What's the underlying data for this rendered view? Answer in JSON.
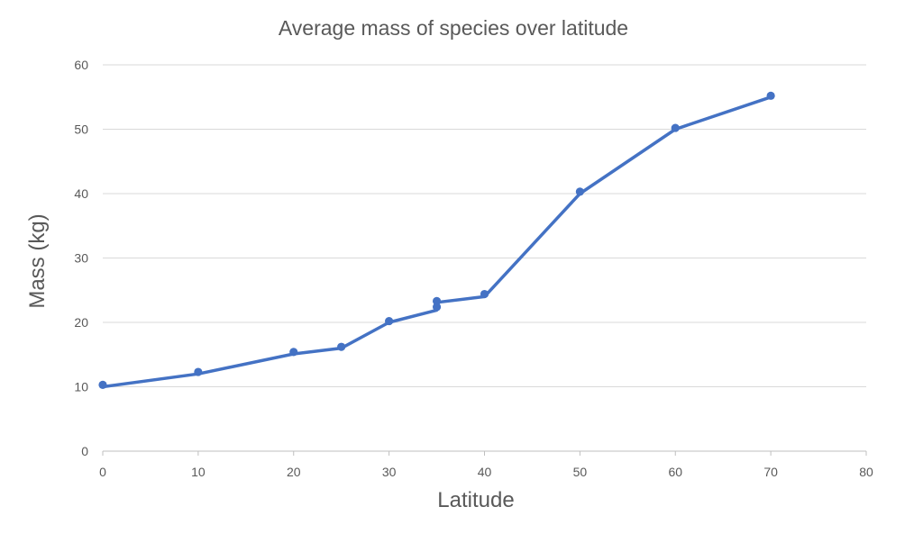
{
  "chart_data": {
    "type": "scatter",
    "title": "Average mass of species over latitude",
    "xlabel": "Latitude",
    "ylabel": "Mass (kg)",
    "xlim": [
      0,
      80
    ],
    "ylim": [
      0,
      60
    ],
    "x_ticks": [
      0,
      10,
      20,
      30,
      40,
      50,
      60,
      70,
      80
    ],
    "y_ticks": [
      0,
      10,
      20,
      30,
      40,
      50,
      60
    ],
    "grid": "horizontal",
    "legend": "none",
    "series": [
      {
        "color": "#4472c4",
        "marker": "circle",
        "points": [
          {
            "x": 0,
            "y": 10.3
          },
          {
            "x": 10,
            "y": 12.3
          },
          {
            "x": 20,
            "y": 15.4
          },
          {
            "x": 25,
            "y": 16.2
          },
          {
            "x": 30,
            "y": 20.2
          },
          {
            "x": 35,
            "y": 22.4
          },
          {
            "x": 35,
            "y": 23.3
          },
          {
            "x": 40,
            "y": 24.4
          },
          {
            "x": 50,
            "y": 40.3
          },
          {
            "x": 60,
            "y": 50.2
          },
          {
            "x": 70,
            "y": 55.2
          }
        ],
        "line": [
          {
            "x": 0,
            "y": 10.0
          },
          {
            "x": 10,
            "y": 12.0
          },
          {
            "x": 20,
            "y": 15.1
          },
          {
            "x": 25,
            "y": 16.0
          },
          {
            "x": 30,
            "y": 20.0
          },
          {
            "x": 35,
            "y": 21.9
          },
          {
            "x": 35,
            "y": 23.1
          },
          {
            "x": 40,
            "y": 24.0
          },
          {
            "x": 50,
            "y": 40.0
          },
          {
            "x": 60,
            "y": 50.0
          },
          {
            "x": 70,
            "y": 55.0
          }
        ]
      }
    ]
  }
}
